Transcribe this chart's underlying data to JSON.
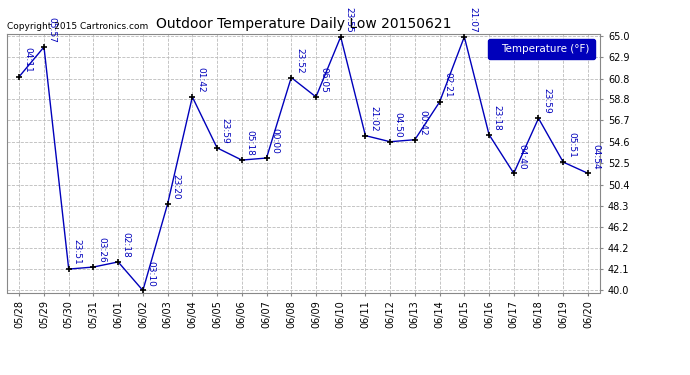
{
  "title": "Outdoor Temperature Daily Low 20150621",
  "copyright": "Copyright 2015 Cartronics.com",
  "background_color": "#ffffff",
  "plot_bg_color": "#ffffff",
  "line_color": "#0000bb",
  "marker_color": "#000000",
  "grid_color": "#bbbbbb",
  "xlabels": [
    "05/28",
    "05/29",
    "05/30",
    "05/31",
    "06/01",
    "06/02",
    "06/03",
    "06/04",
    "06/05",
    "06/06",
    "06/07",
    "06/08",
    "06/09",
    "06/10",
    "06/11",
    "06/12",
    "06/13",
    "06/14",
    "06/15",
    "06/16",
    "06/17",
    "06/18",
    "06/19",
    "06/20"
  ],
  "values": [
    61.0,
    63.9,
    42.1,
    42.3,
    42.8,
    40.0,
    48.5,
    59.0,
    54.0,
    52.8,
    53.0,
    60.9,
    59.0,
    64.9,
    55.2,
    54.6,
    54.8,
    58.5,
    64.9,
    55.3,
    51.5,
    56.9,
    52.6,
    51.5
  ],
  "time_labels": [
    "04:11",
    "05:57",
    "23:51",
    "03:26",
    "02:18",
    "03:10",
    "23:20",
    "01:42",
    "23:59",
    "05:18",
    "00:00",
    "23:52",
    "06:05",
    "23:55",
    "21:02",
    "04:50",
    "00:42",
    "02:21",
    "21:07",
    "23:18",
    "04:40",
    "23:59",
    "05:51",
    "04:54"
  ],
  "ylim": [
    40.0,
    65.0
  ],
  "yticks": [
    40.0,
    42.1,
    44.2,
    46.2,
    48.3,
    50.4,
    52.5,
    54.6,
    56.7,
    58.8,
    60.8,
    62.9,
    65.0
  ],
  "legend_label": "Temperature (°F)",
  "legend_bg": "#0000bb",
  "legend_text": "#ffffff"
}
